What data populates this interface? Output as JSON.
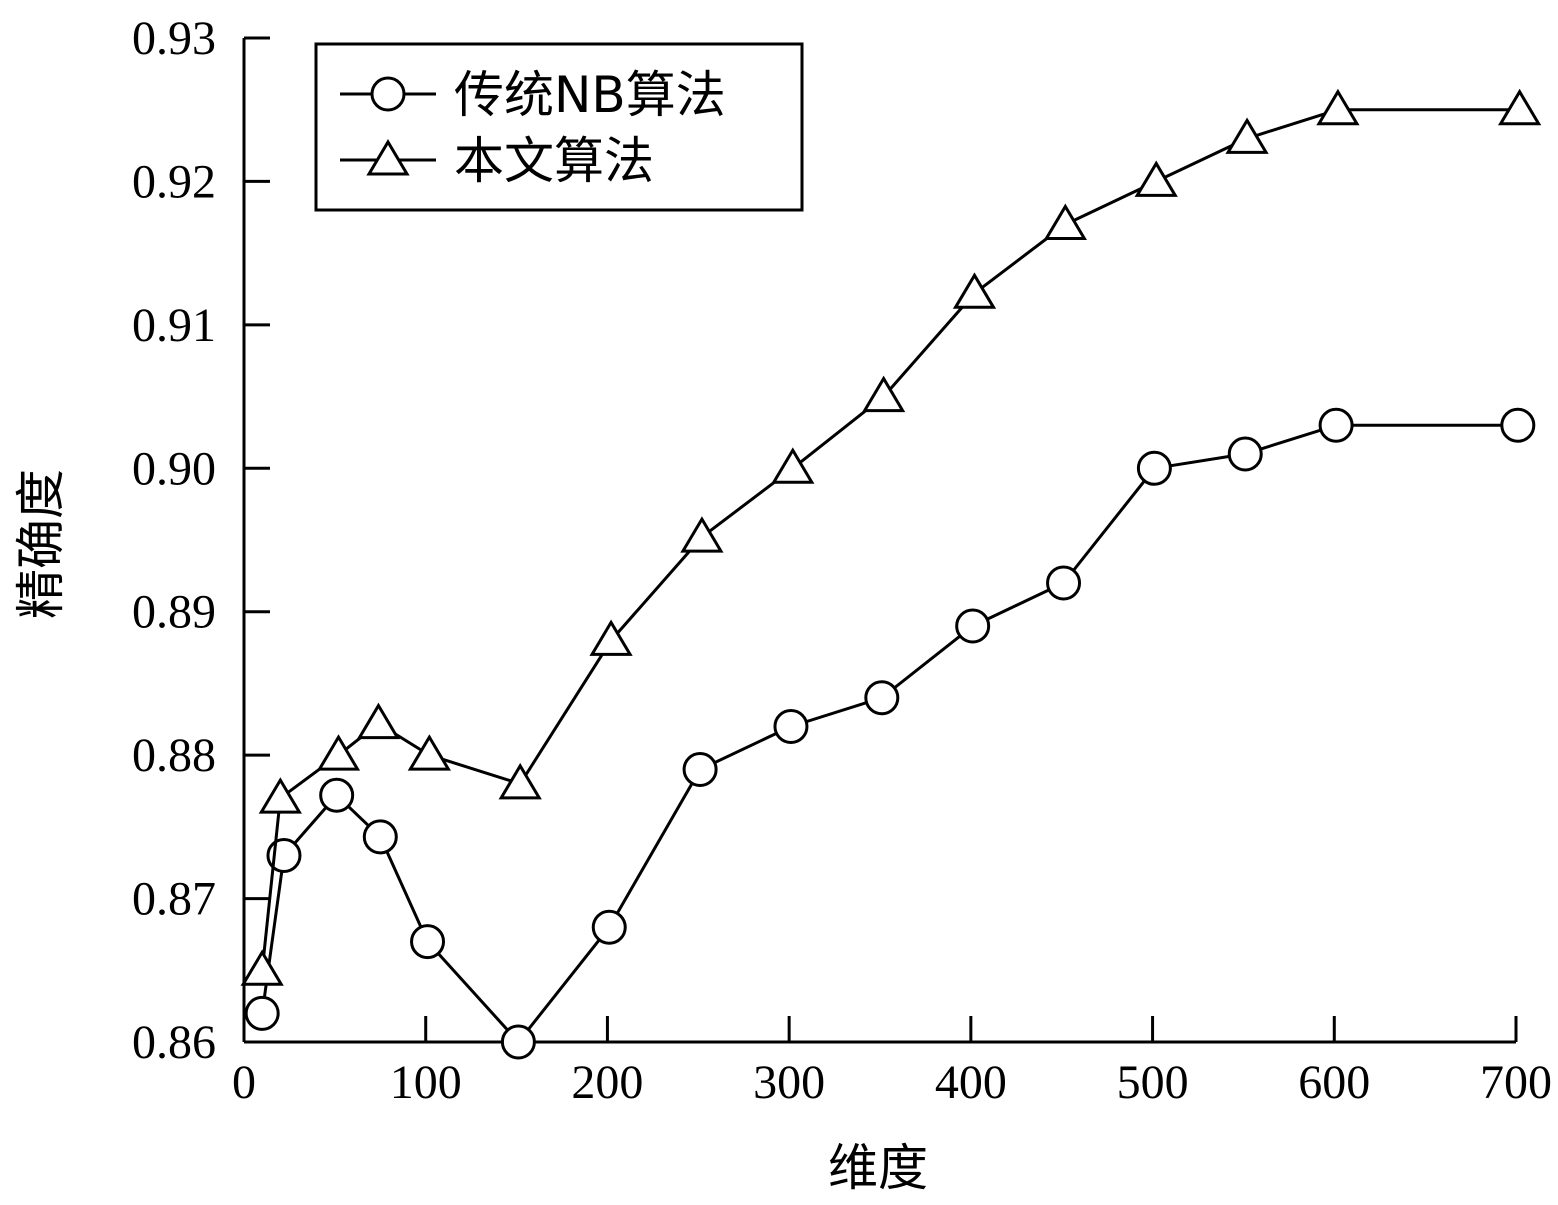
{
  "chart_data": {
    "type": "line",
    "xlabel": "维度",
    "ylabel": "精确度",
    "xlim": [
      0,
      700
    ],
    "ylim": [
      0.86,
      0.93
    ],
    "x_ticks": [
      0,
      100,
      200,
      300,
      400,
      500,
      600,
      700
    ],
    "x_tick_labels": [
      "0",
      "100",
      "200",
      "300",
      "400",
      "500",
      "600",
      "700"
    ],
    "y_ticks": [
      0.86,
      0.87,
      0.88,
      0.89,
      0.9,
      0.91,
      0.92,
      0.93
    ],
    "y_tick_labels": [
      "0.86",
      "0.87",
      "0.88",
      "0.89",
      "0.90",
      "0.91",
      "0.92",
      "0.93"
    ],
    "grid": false,
    "legend_position": "top-left",
    "series": [
      {
        "name": "传统NB算法",
        "marker": "circle",
        "color": "#000000",
        "points": [
          [
            10,
            0.862
          ],
          [
            22,
            0.873
          ],
          [
            51,
            0.8772
          ],
          [
            75,
            0.8743
          ],
          [
            101,
            0.867
          ],
          [
            151,
            0.86
          ],
          [
            201,
            0.868
          ],
          [
            251,
            0.879
          ],
          [
            301,
            0.882
          ],
          [
            351,
            0.884
          ],
          [
            401,
            0.889
          ],
          [
            451,
            0.892
          ],
          [
            501,
            0.9
          ],
          [
            551,
            0.901
          ],
          [
            601,
            0.903
          ],
          [
            701,
            0.903
          ]
        ]
      },
      {
        "name": "本文算法",
        "marker": "triangle",
        "color": "#000000",
        "points": [
          [
            10,
            0.865
          ],
          [
            20,
            0.877
          ],
          [
            52,
            0.88
          ],
          [
            74,
            0.8822
          ],
          [
            102,
            0.88
          ],
          [
            152,
            0.878
          ],
          [
            202,
            0.888
          ],
          [
            252,
            0.8952
          ],
          [
            302,
            0.9
          ],
          [
            352,
            0.905
          ],
          [
            402,
            0.9122
          ],
          [
            452,
            0.917
          ],
          [
            502,
            0.92
          ],
          [
            552,
            0.923
          ],
          [
            602,
            0.925
          ],
          [
            702,
            0.925
          ]
        ]
      }
    ]
  }
}
